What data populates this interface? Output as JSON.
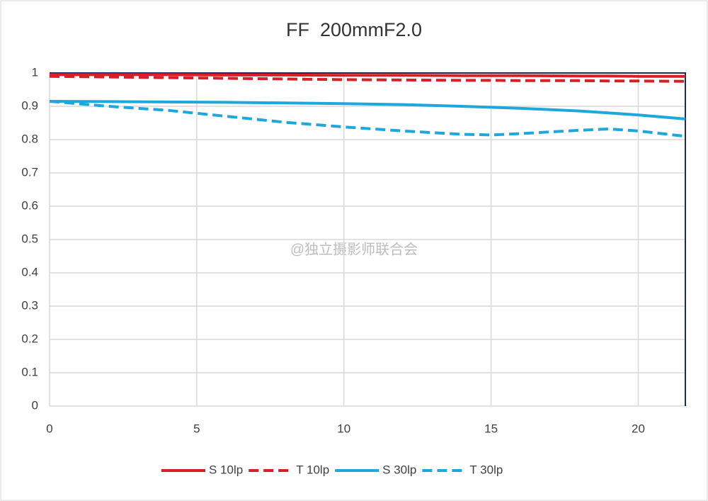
{
  "chart_data": {
    "type": "line",
    "title": "FF  200mmF2.0",
    "watermark": "@独立摄影师联合会",
    "x": [
      0,
      2,
      4,
      6,
      8,
      10,
      12,
      14,
      15,
      16,
      18,
      19,
      20,
      21.6
    ],
    "series": [
      {
        "name": "S 10lp",
        "color": "#d81e27",
        "dash": false,
        "values": [
          0.995,
          0.995,
          0.995,
          0.994,
          0.994,
          0.993,
          0.993,
          0.992,
          0.992,
          0.992,
          0.991,
          0.991,
          0.99,
          0.99
        ]
      },
      {
        "name": "T 10lp",
        "color": "#d81e27",
        "dash": true,
        "values": [
          0.99,
          0.988,
          0.986,
          0.984,
          0.982,
          0.98,
          0.979,
          0.978,
          0.978,
          0.977,
          0.977,
          0.976,
          0.976,
          0.975
        ]
      },
      {
        "name": "S 30lp",
        "color": "#1ea7dd",
        "dash": false,
        "values": [
          0.915,
          0.914,
          0.913,
          0.912,
          0.91,
          0.908,
          0.905,
          0.9,
          0.897,
          0.894,
          0.886,
          0.88,
          0.874,
          0.862
        ]
      },
      {
        "name": "T 30lp",
        "color": "#1ea7dd",
        "dash": true,
        "values": [
          0.915,
          0.9,
          0.888,
          0.87,
          0.852,
          0.838,
          0.826,
          0.816,
          0.814,
          0.818,
          0.828,
          0.832,
          0.826,
          0.81
        ]
      }
    ],
    "xlim": [
      0,
      21.6
    ],
    "xticks": [
      0,
      5,
      10,
      15,
      20
    ],
    "ylim": [
      0,
      1
    ],
    "yticks": [
      0,
      0.1,
      0.2,
      0.3,
      0.4,
      0.5,
      0.6,
      0.7,
      0.8,
      0.9,
      1
    ],
    "grid": true,
    "legend": "bottom"
  }
}
